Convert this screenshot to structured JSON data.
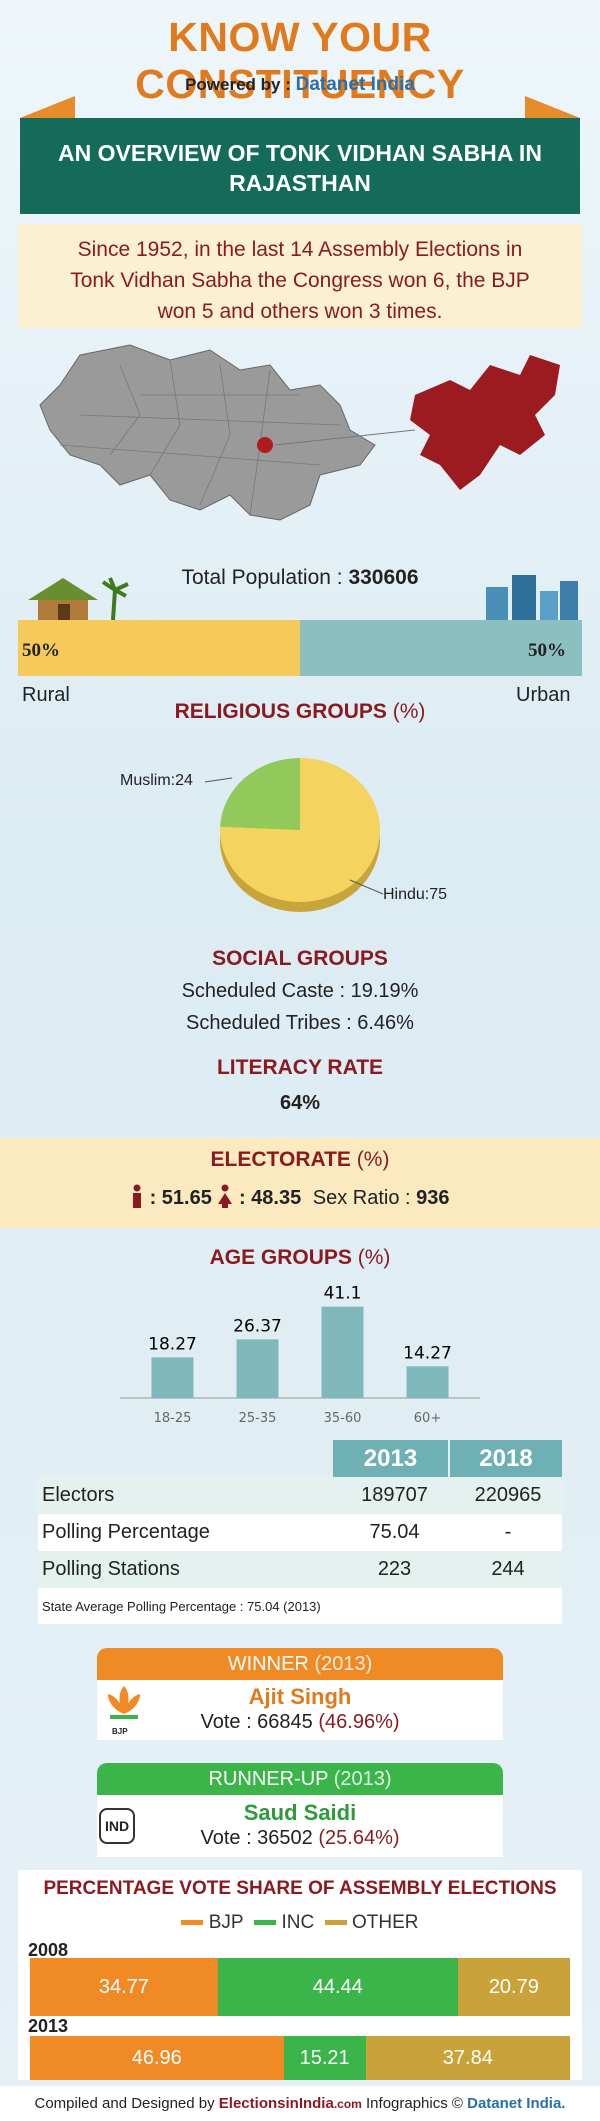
{
  "header": {
    "title": "KNOW YOUR CONSTITUENCY",
    "powered_by": "Powered by :",
    "brand": "Datanet India"
  },
  "ribbon": {
    "line1": "AN OVERVIEW OF TONK VIDHAN SABHA IN",
    "line2": "RAJASTHAN"
  },
  "summary": {
    "line1": "Since 1952, in the last 14 Assembly Elections in",
    "line2": "Tonk Vidhan Sabha the Congress won 6, the BJP",
    "line3": "won 5 and others won 3 times."
  },
  "population": {
    "label": "Total Population :",
    "value": "330606",
    "rural_pct": "50%",
    "urban_pct": "50%",
    "rural_label": "Rural",
    "urban_label": "Urban",
    "rural_fraction": 0.5
  },
  "religion": {
    "title": "RELIGIOUS GROUPS",
    "unit": "(%)",
    "muslim_label": "Muslim:24",
    "hindu_label": "Hindu:75",
    "muslim": 24,
    "hindu": 75
  },
  "social": {
    "title": "SOCIAL GROUPS",
    "sc_label": "Scheduled Caste :",
    "sc_value": "19.19%",
    "st_label": "Scheduled Tribes :",
    "st_value": "6.46%"
  },
  "literacy": {
    "title": "LITERACY RATE",
    "value": "64%"
  },
  "electorate": {
    "title": "ELECTORATE",
    "unit": "(%)",
    "male": ": 51.65",
    "female": ": 48.35",
    "sex_ratio_label": "Sex Ratio :",
    "sex_ratio": "936"
  },
  "chart_data": {
    "type": "bar",
    "title": "AGE GROUPS (%)",
    "categories": [
      "18-25",
      "25-35",
      "35-60",
      "60+"
    ],
    "values": [
      18.27,
      26.37,
      41.1,
      14.27
    ],
    "labels": [
      "18.27",
      "26.37",
      "41.1",
      "14.27"
    ],
    "ylim": [
      0,
      45
    ]
  },
  "polling": {
    "years": [
      "2013",
      "2018"
    ],
    "rows": [
      {
        "label": "Electors",
        "v2013": "189707",
        "v2018": "220965"
      },
      {
        "label": "Polling Percentage",
        "v2013": "75.04",
        "v2018": "-"
      },
      {
        "label": "Polling Stations",
        "v2013": "223",
        "v2018": "244"
      }
    ],
    "note": "State Average Polling Percentage : 75.04 (2013)"
  },
  "winner": {
    "title": "WINNER",
    "year": "(2013)",
    "name": "Ajit Singh",
    "vote_label": "Vote : 66845",
    "vote_pct": "(46.96%)",
    "party_icon": "lotus-icon",
    "party_text": "BJP"
  },
  "runner": {
    "title": "RUNNER-UP",
    "year": "(2013)",
    "name": "Saud Saidi",
    "vote_label": "Vote : 36502",
    "vote_pct": "(25.64%)",
    "party_badge": "IND"
  },
  "vote_share": {
    "title": "PERCENTAGE VOTE SHARE OF ASSEMBLY ELECTIONS",
    "legend": [
      {
        "name": "BJP",
        "color": "#f08a24"
      },
      {
        "name": "INC",
        "color": "#3bb54a"
      },
      {
        "name": "OTHER",
        "color": "#c9a33a"
      }
    ],
    "years": [
      {
        "year": "2008",
        "values": [
          34.77,
          44.44,
          20.79
        ],
        "labels": [
          "34.77",
          "44.44",
          "20.79"
        ]
      },
      {
        "year": "2013",
        "values": [
          46.96,
          15.21,
          37.84
        ],
        "labels": [
          "46.96",
          "15.21",
          "37.84"
        ]
      }
    ]
  },
  "footer": {
    "compiled": "Compiled and Designed by",
    "site": "ElectionsinIndia",
    "site_suffix": ".com",
    "infographics": "Infographics ©",
    "brand": "Datanet India."
  },
  "colors": {
    "orange": "#e07a1c",
    "teal": "#146b5a",
    "maroon": "#8a1a1f",
    "rural": "#f7c95b",
    "urban": "#8cbfc0",
    "bar": "#7fb8ba"
  }
}
